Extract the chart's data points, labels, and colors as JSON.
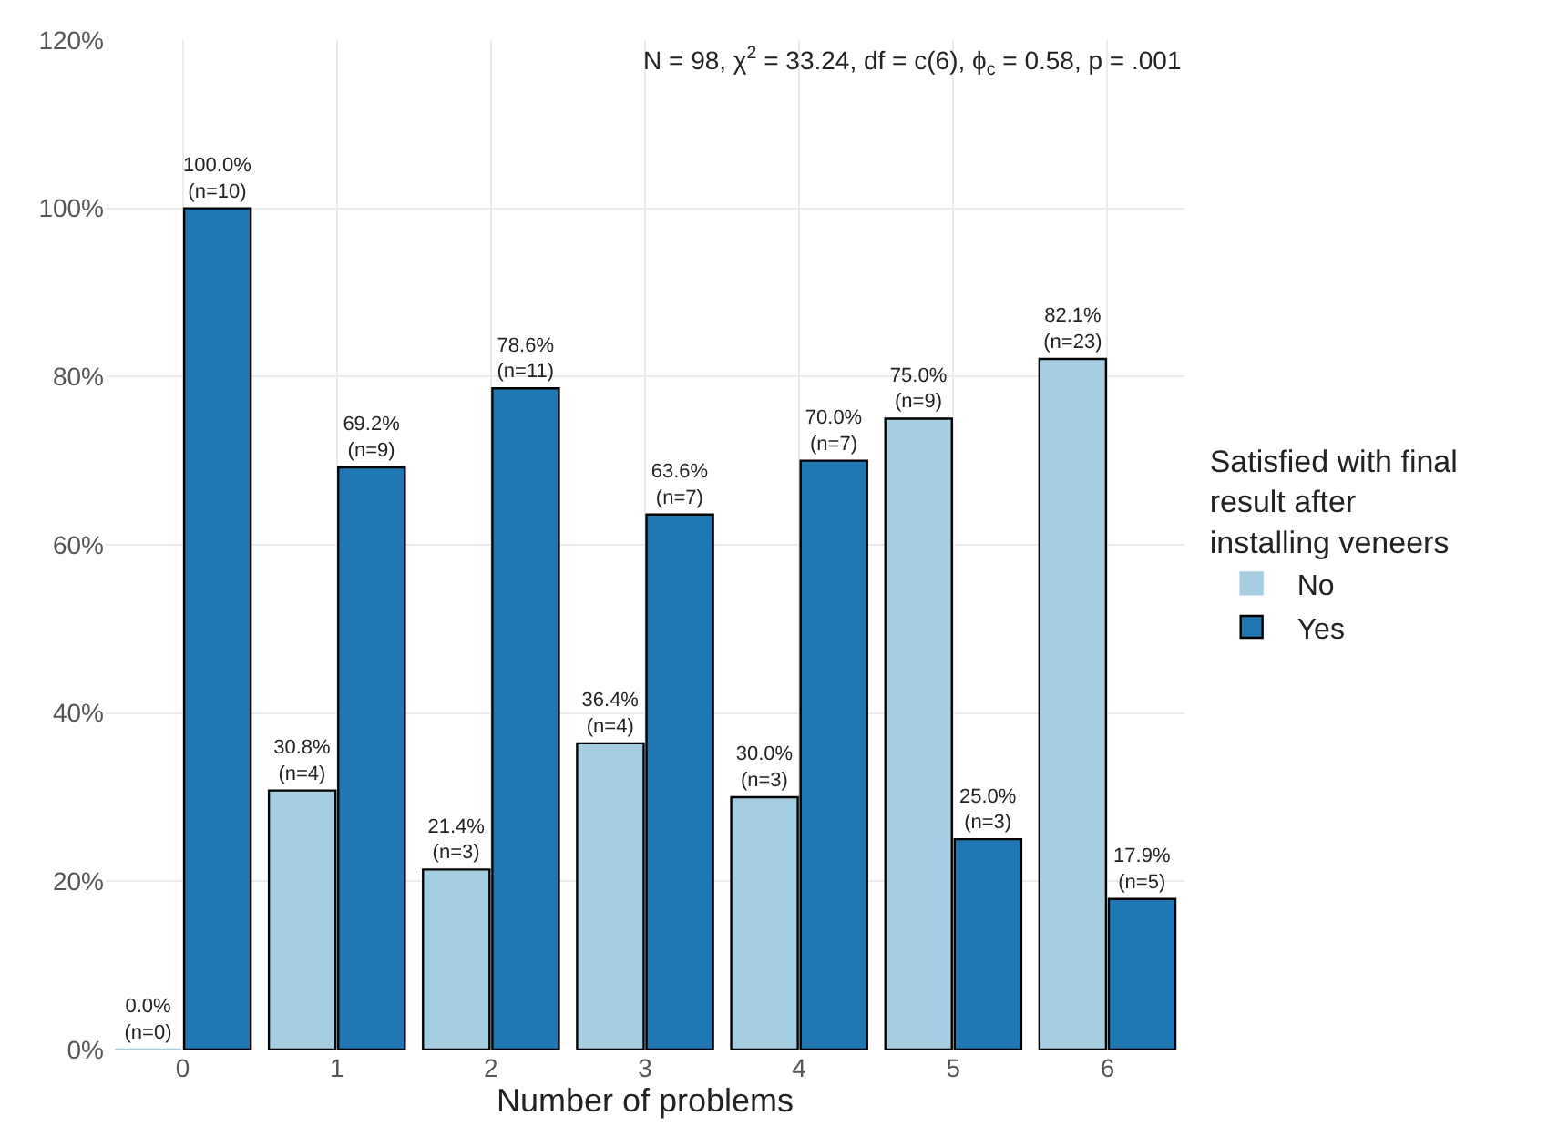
{
  "chart_data": {
    "type": "bar",
    "categories": [
      "0",
      "1",
      "2",
      "3",
      "4",
      "5",
      "6"
    ],
    "xlabel": "Number of problems",
    "legend_title": "Satisfied with final result after installing veneers",
    "annotations": [
      "N = 98, χ$^{2}$ = 33.24, df = c(6), ϕ$_{c}$ = 0.58, p = .001"
    ],
    "series": [
      {
        "name": "No",
        "color": "#a6cee3",
        "values": [
          0.0,
          30.8,
          21.4,
          36.4,
          30.0,
          75.0,
          82.1
        ],
        "value_labels": [
          "0.0%\n(n=0)",
          "30.8%\n(n=4)",
          "21.4%\n(n=3)",
          "36.4%\n(n=4)",
          "30.0%\n(n=3)",
          "75.0%\n(n=9)",
          "82.1%\n(n=23)"
        ]
      },
      {
        "name": "Yes",
        "color": "#1f78b4",
        "values": [
          100.0,
          69.2,
          78.6,
          63.6,
          70.0,
          25.0,
          17.9
        ],
        "value_labels": [
          "100.0%\n(n=10)",
          "69.2%\n(n=9)",
          "78.6%\n(n=11)",
          "63.6%\n(n=7)",
          "70.0%\n(n=7)",
          "25.0%\n(n=3)",
          "17.9%\n(n=5)"
        ]
      }
    ],
    "ylim": [
      0,
      120
    ],
    "yticks": [
      {
        "value": 0,
        "label": "0%"
      },
      {
        "value": 20,
        "label": "20%"
      },
      {
        "value": 40,
        "label": "40%"
      },
      {
        "value": 60,
        "label": "60%"
      },
      {
        "value": 80,
        "label": "80%"
      },
      {
        "value": 100,
        "label": "100%"
      },
      {
        "value": 120,
        "label": "120%"
      }
    ],
    "grid": true,
    "legend": "right"
  }
}
